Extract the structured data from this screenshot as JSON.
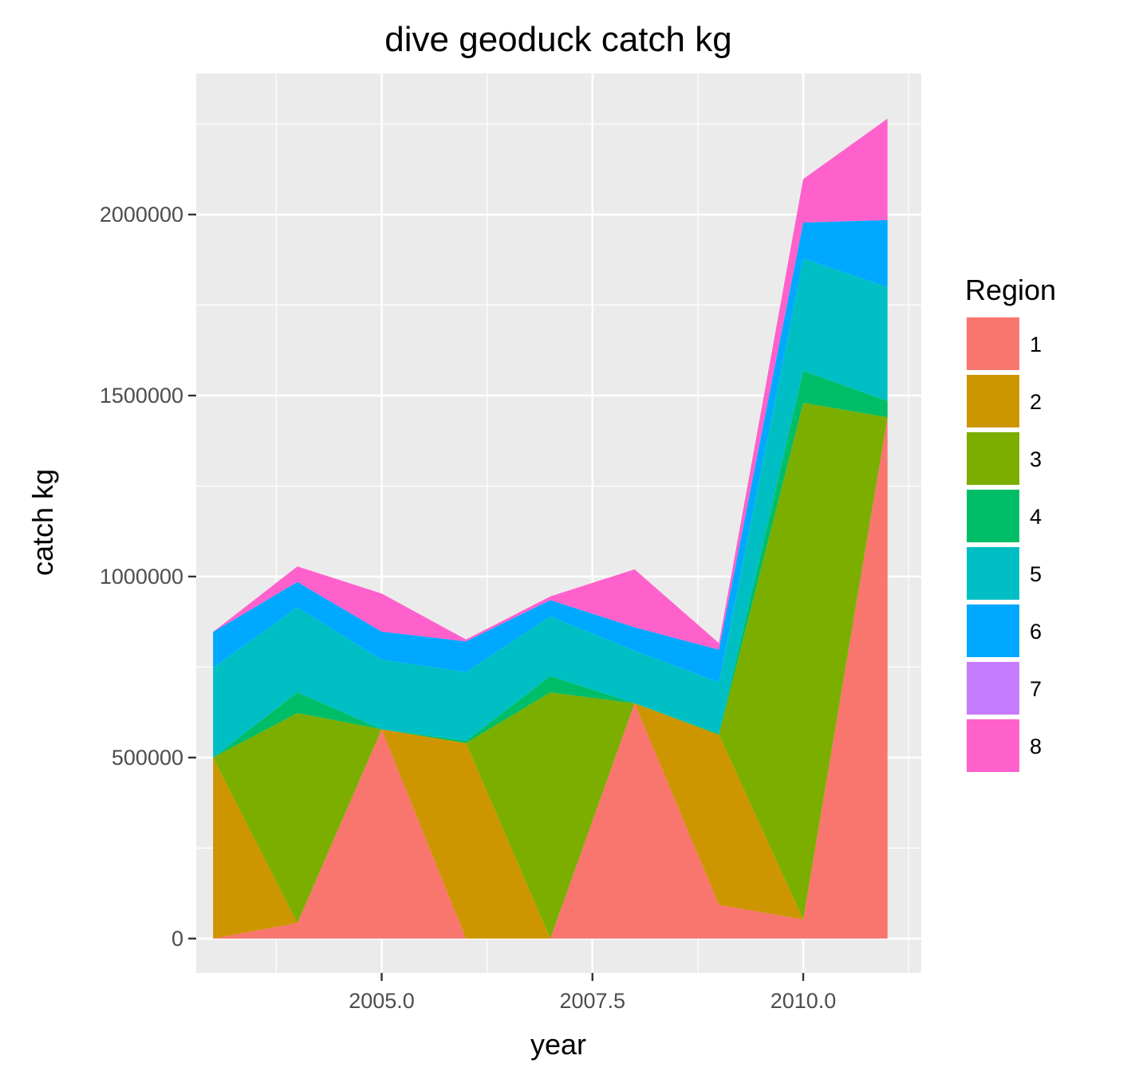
{
  "chart_data": {
    "type": "area",
    "stacked": true,
    "title": "dive geoduck catch kg",
    "xlabel": "year",
    "ylabel": "catch kg",
    "xlim": [
      2002.8,
      2011.4
    ],
    "ylim": [
      -95000,
      2390000
    ],
    "x_ticks": [
      2005.0,
      2007.5,
      2010.0
    ],
    "x_tick_labels": [
      "2005.0",
      "2007.5",
      "2010.0"
    ],
    "y_ticks": [
      0,
      500000,
      1000000,
      1500000,
      2000000
    ],
    "y_tick_labels": [
      "0",
      "500000",
      "1000000",
      "1500000",
      "2000000"
    ],
    "grid": true,
    "legend": {
      "title": "Region",
      "position": "right"
    },
    "x": [
      2003,
      2004,
      2005,
      2006,
      2007,
      2008,
      2009,
      2010,
      2011
    ],
    "series": [
      {
        "name": "1",
        "color": "#F8766D",
        "values": [
          0,
          43000,
          578000,
          0,
          0,
          650000,
          93000,
          53000,
          1440000
        ]
      },
      {
        "name": "2",
        "color": "#CD9600",
        "values": [
          500000,
          0,
          0,
          540000,
          0,
          0,
          470000,
          0,
          0
        ]
      },
      {
        "name": "3",
        "color": "#7CAE00",
        "values": [
          0,
          580000,
          0,
          0,
          680000,
          0,
          0,
          1427000,
          0
        ]
      },
      {
        "name": "4",
        "color": "#00BE67",
        "values": [
          0,
          57000,
          0,
          6000,
          45000,
          0,
          3000,
          88000,
          45000
        ]
      },
      {
        "name": "5",
        "color": "#00BFC4",
        "values": [
          248000,
          235000,
          192000,
          190000,
          165000,
          145000,
          142000,
          310000,
          315000
        ]
      },
      {
        "name": "6",
        "color": "#00A9FF",
        "values": [
          99000,
          70000,
          78000,
          85000,
          45000,
          65000,
          90000,
          100000,
          185000
        ]
      },
      {
        "name": "7",
        "color": "#C77CFF",
        "values": [
          0,
          0,
          0,
          0,
          0,
          0,
          0,
          0,
          0
        ]
      },
      {
        "name": "8",
        "color": "#FF61CC",
        "values": [
          0,
          43000,
          105000,
          5000,
          10000,
          160000,
          18000,
          120000,
          280000
        ]
      }
    ]
  }
}
